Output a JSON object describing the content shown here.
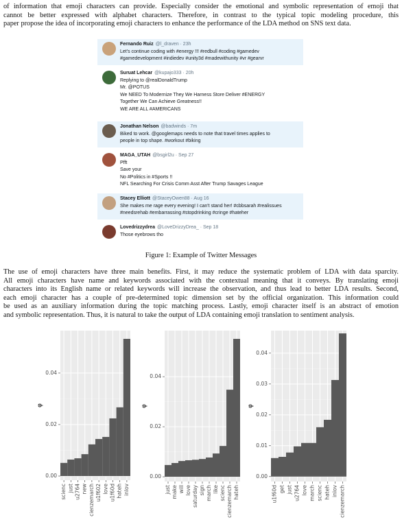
{
  "intro": {
    "lines": [
      "of information that emoji characters can provide. Especially consider the emotional and symbolic representation of emoji that",
      "cannot be better expressed with alphabet characters. Therefore, in contrast to the typical topic modeling procedure, this",
      "paper propose the idea of incorporating emoji characters to enhance the performance of the LDA method on SNS text data."
    ]
  },
  "figure": {
    "tweets": [
      {
        "name": "Fernando Ruiz",
        "handle": "@l_draven · 23h",
        "lines": [
          "Let's continue coding with #energy !!! #redbull #coding #gamedev",
          "#gamedevelopment #indiedev #unity3d #madewithunity #vr #gearvr"
        ]
      },
      {
        "name": "Suruat Lehcar",
        "handle": "@kupajo333 · 20h",
        "lines": [
          "Replying to @realDonaldTrump",
          "Mr. @POTUS",
          "We NEED To Modernize They We Harness Store Deliver #ENERGY",
          "Together We Can Achieve Greatness!!",
          "WE ARE ALL #AMERICANS"
        ]
      },
      {
        "name": "Jonathan Nelson",
        "handle": "@badwinds · 7m",
        "lines": [
          "Biked to work. @googlemaps needs to note that travel times applies to",
          "people in top shape. #workout #biking"
        ]
      },
      {
        "name": "MAGA_UTAH",
        "handle": "@bsgirl2u · Sep 27",
        "lines": [
          "Pfft",
          "Save your",
          "No #Politics in #Sports !!",
          "NFL Searching For Crisis Comm Asst After Trump Savages League"
        ]
      },
      {
        "name": "Stacey Elliott",
        "handle": "@StaceyOwen88 · Aug 16",
        "lines": [
          "She makes me rage every evening! I can't stand her! #cbbsarah #realissues",
          "#needsrehab #embarrassing #stopdrinking #cringe #hateher"
        ]
      },
      {
        "name": "Lovedrizzydrea",
        "handle": "@LoveDrizzyDrea_ · Sep 18",
        "lines": [
          "Those eyebrows tho"
        ]
      }
    ],
    "caption": "Figure 1: Example of Twitter Messages"
  },
  "body": {
    "lines": [
      "The use of emoji characters have three main benefits. First, it may reduce the systematic problem of LDA with data sparcity.",
      "All emoji characters have name and keywords associated with the contextual meaning that it conveys. By translating emoji",
      "characters into its English name or related keywords will increase the observation, and thus lead to better LDA results. Second,",
      "each emoji character has a couple of pre-determined topic dimension set by the official organization. This information could",
      "be used as an auxiliary information during the topic matching process. Lastly, emoji character itself is an abstract of emotion",
      "and symbolic representation. Thus, it is natural to take the output of LDA containing emoji translation to sentiment analysis."
    ]
  },
  "chart_data": [
    {
      "type": "bar",
      "ylabel": "φ",
      "color": "#595959",
      "grid": true,
      "categories": [
        "scienc",
        "just",
        "u2764",
        "new",
        "cienzemarch",
        "u1f602",
        "love",
        "u1f60d",
        "hateh",
        "inlov"
      ],
      "values": [
        0.0051,
        0.0064,
        0.0069,
        0.0085,
        0.0123,
        0.0144,
        0.0152,
        0.0224,
        0.0267,
        0.0533
      ],
      "ylim": [
        -0.0016,
        0.0565
      ],
      "yticks": [
        {
          "value": 0,
          "label": "0.00"
        },
        0.02,
        0.04
      ]
    },
    {
      "type": "bar",
      "ylabel": "φ",
      "color": "#595959",
      "grid": true,
      "categories": [
        "just",
        "make",
        "will",
        "love",
        "saturday",
        "sign",
        "march",
        "like",
        "scienc",
        "cienzemarch",
        "hateh"
      ],
      "values": [
        0.0047,
        0.0055,
        0.0063,
        0.0066,
        0.0068,
        0.0071,
        0.0077,
        0.0093,
        0.0123,
        0.0348,
        0.0551
      ],
      "ylim": [
        -0.0019,
        0.0584
      ],
      "yticks": [
        {
          "value": 0,
          "label": "0.00"
        },
        0.02,
        0.04
      ]
    },
    {
      "type": "bar",
      "ylabel": "φ",
      "color": "#595959",
      "grid": true,
      "categories": [
        "u1f60d",
        "get",
        "just",
        "u2764",
        "love",
        "march",
        "scienc",
        "hateh",
        "inlov",
        "cienzemarch"
      ],
      "values": [
        0.006,
        0.0064,
        0.0078,
        0.0098,
        0.0109,
        0.0109,
        0.016,
        0.0184,
        0.0313,
        0.0464
      ],
      "ylim": [
        -0.0016,
        0.0473
      ],
      "yticks": [
        {
          "value": 0,
          "label": "0.00"
        },
        0.01,
        0.02,
        0.03,
        0.04
      ]
    }
  ]
}
